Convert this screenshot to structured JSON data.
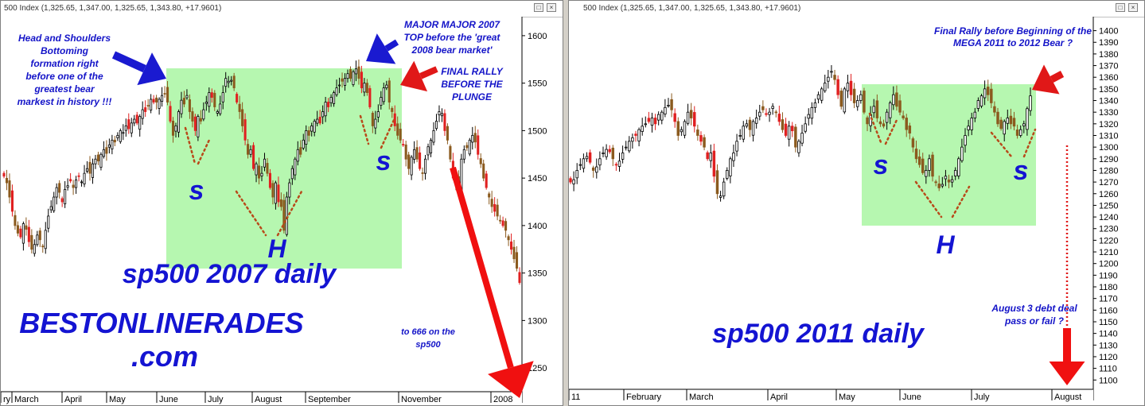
{
  "header": {
    "left_title": "500 Index (1,325.65, 1,347.00, 1,325.65, 1,343.80, +17.9601)",
    "right_title": "500 Index (1,325.65, 1,347.00, 1,325.65, 1,343.80, +17.9601)",
    "win_restore_glyph": "□",
    "win_close_glyph": "×"
  },
  "chart_data": [
    {
      "type": "candlestick",
      "title": "sp500 2007 daily",
      "ylim": [
        1225,
        1620
      ],
      "y_ticks": [
        "1600",
        "1550",
        "1500",
        "1450",
        "1400",
        "1350",
        "1300",
        "1250"
      ],
      "y_tick_values": [
        1600,
        1550,
        1500,
        1450,
        1400,
        1350,
        1300,
        1250
      ],
      "x_labels": [
        "ry",
        "March",
        "April",
        "May",
        "June",
        "July",
        "August",
        "September",
        "November",
        "2008"
      ],
      "pattern_labels": {
        "s_left": "s",
        "head": "H",
        "s_right": "s"
      },
      "annotations": {
        "watermark_line1": "BESTONLINERADES",
        "watermark_line2": ".com",
        "hs_note": [
          "Head and Shoulders",
          "Bottoming",
          "formation right",
          "before one of the",
          "greatest bear",
          "markest in history !!!"
        ],
        "top_note": [
          "MAJOR MAJOR 2007",
          "TOP before the 'great",
          "2008 bear market'"
        ],
        "final_rally": [
          "FINAL RALLY",
          "BEFORE THE",
          "PLUNGE"
        ],
        "target_note": [
          "to 666 on the",
          "sp500"
        ]
      },
      "series": [
        {
          "values": [
            1452,
            1445,
            1430,
            1415,
            1400,
            1392,
            1388,
            1402,
            1396,
            1383,
            1375,
            1380,
            1390,
            1385,
            1378,
            1395,
            1410,
            1420,
            1430,
            1440,
            1435,
            1425,
            1438,
            1442,
            1447,
            1440,
            1448,
            1452,
            1446,
            1455,
            1460,
            1455,
            1465,
            1470,
            1468,
            1475,
            1480,
            1476,
            1485,
            1490,
            1488,
            1495,
            1500,
            1498,
            1505,
            1502,
            1508,
            1512,
            1508,
            1515,
            1522,
            1520,
            1526,
            1533,
            1530,
            1530,
            1533,
            1537,
            1539,
            1530,
            1510,
            1495,
            1505,
            1520,
            1532,
            1528,
            1537,
            1520,
            1510,
            1500,
            1515,
            1510,
            1522,
            1530,
            1540,
            1535,
            1525,
            1520,
            1528,
            1540,
            1555,
            1552,
            1553,
            1545,
            1530,
            1520,
            1505,
            1490,
            1475,
            1480,
            1460,
            1465,
            1450,
            1455,
            1470,
            1455,
            1440,
            1430,
            1445,
            1425,
            1420,
            1395,
            1430,
            1445,
            1460,
            1470,
            1480,
            1475,
            1490,
            1500,
            1495,
            1505,
            1510,
            1512,
            1508,
            1520,
            1530,
            1525,
            1535,
            1540,
            1545,
            1548,
            1552,
            1555,
            1560,
            1555,
            1562,
            1565,
            1555,
            1545,
            1550,
            1540,
            1525,
            1505,
            1512,
            1520,
            1535,
            1545,
            1548,
            1530,
            1520,
            1505,
            1495,
            1490,
            1485,
            1470,
            1460,
            1472,
            1480,
            1470,
            1460,
            1455,
            1470,
            1483,
            1490,
            1500,
            1510,
            1520,
            1518,
            1500,
            1490,
            1470,
            1450,
            1445,
            1440,
            1470,
            1480,
            1482,
            1490,
            1495,
            1488,
            1475,
            1465,
            1450,
            1440,
            1430,
            1420,
            1415,
            1410,
            1405,
            1400,
            1395,
            1385,
            1375,
            1365,
            1355,
            1340
          ]
        }
      ]
    },
    {
      "type": "candlestick",
      "title": "sp500 2011 daily",
      "ylim": [
        1092,
        1412
      ],
      "y_ticks": [
        "1400",
        "1390",
        "1380",
        "1370",
        "1360",
        "1350",
        "1340",
        "1330",
        "1320",
        "1310",
        "1300",
        "1290",
        "1280",
        "1270",
        "1260",
        "1250",
        "1240",
        "1230",
        "1220",
        "1210",
        "1200",
        "1190",
        "1180",
        "1170",
        "1160",
        "1150",
        "1140",
        "1130",
        "1120",
        "1110",
        "1100"
      ],
      "y_tick_values": [
        1400,
        1390,
        1380,
        1370,
        1360,
        1350,
        1340,
        1330,
        1320,
        1310,
        1300,
        1290,
        1280,
        1270,
        1260,
        1250,
        1240,
        1230,
        1220,
        1210,
        1200,
        1190,
        1180,
        1170,
        1160,
        1150,
        1140,
        1130,
        1120,
        1110,
        1100
      ],
      "x_labels": [
        "11",
        "February",
        "March",
        "April",
        "May",
        "June",
        "July",
        "August"
      ],
      "pattern_labels": {
        "s_left": "s",
        "head": "H",
        "s_right": "s"
      },
      "annotations": {
        "final_rally": [
          "Final Rally before Beginning of the",
          "MEGA 2011 to 2012 Bear ?"
        ],
        "aug_note": [
          "August 3 debt deal",
          "pass or fail ?"
        ]
      },
      "series": [
        {
          "values": [
            1270,
            1272,
            1280,
            1285,
            1290,
            1292,
            1287,
            1280,
            1283,
            1290,
            1295,
            1298,
            1296,
            1290,
            1285,
            1288,
            1295,
            1300,
            1305,
            1308,
            1310,
            1315,
            1318,
            1320,
            1322,
            1325,
            1320,
            1328,
            1330,
            1334,
            1336,
            1332,
            1322,
            1310,
            1315,
            1322,
            1330,
            1325,
            1318,
            1310,
            1305,
            1300,
            1290,
            1295,
            1275,
            1260,
            1258,
            1270,
            1280,
            1290,
            1295,
            1305,
            1310,
            1318,
            1320,
            1315,
            1322,
            1325,
            1330,
            1332,
            1328,
            1330,
            1335,
            1330,
            1322,
            1315,
            1310,
            1318,
            1314,
            1300,
            1305,
            1312,
            1320,
            1328,
            1334,
            1338,
            1345,
            1350,
            1355,
            1360,
            1365,
            1358,
            1345,
            1335,
            1350,
            1355,
            1345,
            1338,
            1340,
            1345,
            1330,
            1320,
            1328,
            1335,
            1325,
            1320,
            1318,
            1330,
            1338,
            1345,
            1335,
            1330,
            1325,
            1315,
            1312,
            1300,
            1290,
            1285,
            1278,
            1280,
            1290,
            1275,
            1270,
            1265,
            1268,
            1275,
            1270,
            1272,
            1280,
            1290,
            1300,
            1310,
            1318,
            1325,
            1330,
            1340,
            1344,
            1350,
            1345,
            1338,
            1330,
            1320,
            1316,
            1322,
            1325,
            1320,
            1318,
            1310,
            1315,
            1320,
            1333,
            1344
          ]
        }
      ]
    }
  ]
}
